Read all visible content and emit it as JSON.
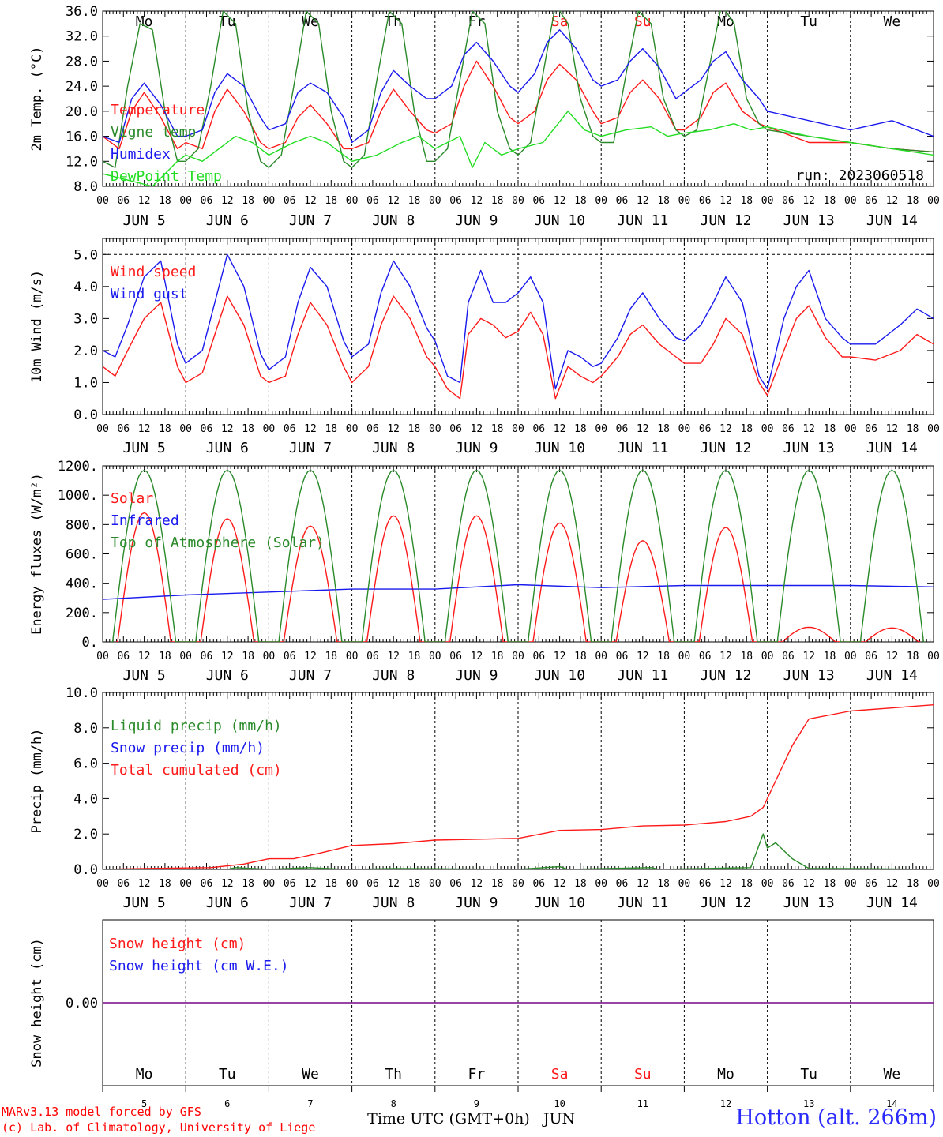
{
  "colors": {
    "red": "#ff1a1a",
    "darkgreen": "#2a8a2a",
    "green": "#22dd22",
    "blue": "#1a1aee",
    "purple": "#8a2a9a",
    "black": "#000000"
  },
  "hour_ticks": [
    "00",
    "06",
    "12",
    "18"
  ],
  "day_names": [
    "Mo",
    "Tu",
    "We",
    "Th",
    "Fr",
    "Sa",
    "Su",
    "Mo",
    "Tu",
    "We"
  ],
  "weekend_day_index": [
    5,
    6
  ],
  "date_labels": [
    "JUN  5",
    "JUN  6",
    "JUN  7",
    "JUN  8",
    "JUN  9",
    "JUN 10",
    "JUN 11",
    "JUN 12",
    "JUN 13",
    "JUN 14"
  ],
  "day_numbers": [
    "5",
    "6",
    "7",
    "8",
    "9",
    "10",
    "11",
    "12",
    "13",
    "14"
  ],
  "x_axis_title": "Time UTC (GMT+0h)",
  "x_axis_month": "JUN",
  "credits": [
    "MARv3.13 model forced by GFS",
    "(c) Lab. of Climatology, University of Liege"
  ],
  "station": "Hotton (alt. 266m)",
  "chart_data": [
    {
      "type": "line",
      "ylabel": "2m Temp. (°C)",
      "ylim": [
        8,
        36
      ],
      "yticks": [
        "8.0",
        "12.0",
        "16.0",
        "20.0",
        "24.0",
        "28.0",
        "32.0",
        "36.0"
      ],
      "run_label": "run: 2023060518",
      "grid": "vertical dashed at 00 UTC",
      "x_days": [
        0,
        10
      ],
      "series": [
        {
          "name": "Temperature",
          "color": "red",
          "x": [
            0,
            0.2,
            0.35,
            0.5,
            0.7,
            0.9,
            1.0,
            1.2,
            1.35,
            1.5,
            1.7,
            1.9,
            2.0,
            2.2,
            2.35,
            2.5,
            2.7,
            2.9,
            3.0,
            3.2,
            3.35,
            3.5,
            3.7,
            3.9,
            4.0,
            4.2,
            4.35,
            4.5,
            4.7,
            4.9,
            5.0,
            5.2,
            5.35,
            5.5,
            5.7,
            5.9,
            6.0,
            6.2,
            6.35,
            6.5,
            6.7,
            6.9,
            7.0,
            7.2,
            7.35,
            7.5,
            7.7,
            7.9,
            8.0,
            8.5,
            9.0,
            9.5,
            10.0
          ],
          "values": [
            16,
            14,
            20,
            23,
            19,
            14,
            15,
            14,
            20,
            23.5,
            20,
            15,
            14,
            15,
            19,
            21,
            18,
            14,
            14,
            15,
            20,
            23.5,
            20,
            17,
            16.5,
            18,
            24,
            28,
            24,
            19,
            18,
            20,
            25,
            27.5,
            25,
            20,
            18,
            19,
            23,
            25,
            22,
            17,
            17,
            19,
            23,
            24.5,
            20,
            18,
            17.5,
            15,
            15,
            14,
            13.5
          ]
        },
        {
          "name": "Vigne temp",
          "color": "darkgreen",
          "x": [
            0,
            0.15,
            0.3,
            0.45,
            0.6,
            0.75,
            0.9,
            1.0,
            1.15,
            1.3,
            1.45,
            1.6,
            1.75,
            1.9,
            2.0,
            2.15,
            2.3,
            2.45,
            2.6,
            2.75,
            2.9,
            3.0,
            3.15,
            3.3,
            3.45,
            3.6,
            3.75,
            3.9,
            4.0,
            4.15,
            4.3,
            4.45,
            4.6,
            4.75,
            4.9,
            5.0,
            5.15,
            5.3,
            5.45,
            5.6,
            5.75,
            5.9,
            6.0,
            6.15,
            6.3,
            6.45,
            6.6,
            6.75,
            6.9,
            7.0,
            7.15,
            7.3,
            7.45,
            7.6,
            7.75,
            7.9,
            8.0,
            8.5,
            9.0,
            9.5,
            10.0
          ],
          "values": [
            12,
            11,
            24,
            34,
            33,
            20,
            12,
            12,
            14,
            24,
            36,
            34,
            20,
            12,
            11,
            13,
            24,
            36,
            34,
            20,
            12,
            11,
            13,
            25,
            36,
            34,
            20,
            12,
            12,
            14,
            25,
            36,
            34,
            20,
            14,
            13,
            15,
            26,
            37,
            34,
            22,
            16,
            15,
            15,
            26,
            36,
            34,
            22,
            17,
            16,
            17,
            27,
            37,
            34,
            22,
            18,
            17,
            16,
            15,
            14,
            13.5
          ]
        },
        {
          "name": "Humidex",
          "color": "blue",
          "x": [
            0,
            0.2,
            0.35,
            0.5,
            0.7,
            0.9,
            1.0,
            1.2,
            1.35,
            1.5,
            1.7,
            1.9,
            2.0,
            2.2,
            2.35,
            2.5,
            2.7,
            2.9,
            3.0,
            3.2,
            3.35,
            3.5,
            3.7,
            3.9,
            4.0,
            4.2,
            4.35,
            4.5,
            4.7,
            4.9,
            5.0,
            5.2,
            5.35,
            5.5,
            5.7,
            5.9,
            6.0,
            6.2,
            6.35,
            6.5,
            6.7,
            6.9,
            7.0,
            7.2,
            7.35,
            7.5,
            7.7,
            7.9,
            8.0,
            8.5,
            9.0,
            9.5,
            10.0
          ],
          "values": [
            16,
            15,
            22,
            24.5,
            21,
            16,
            16,
            17,
            23,
            26,
            24,
            19,
            17,
            18,
            23,
            24.5,
            23,
            19,
            15,
            17,
            23,
            26.5,
            24,
            22,
            22,
            24,
            29,
            31,
            28,
            24,
            23,
            26,
            31,
            33,
            30,
            25,
            24,
            25,
            28,
            30,
            27,
            22,
            23,
            25,
            28,
            29.5,
            25,
            22,
            20,
            18.5,
            17,
            18.5,
            16
          ]
        },
        {
          "name": "DewPoint Temp",
          "color": "green",
          "x": [
            0,
            0.3,
            0.6,
            0.9,
            1.0,
            1.2,
            1.4,
            1.6,
            1.8,
            2.0,
            2.3,
            2.5,
            2.7,
            3.0,
            3.3,
            3.6,
            3.8,
            4.0,
            4.3,
            4.45,
            4.6,
            4.8,
            5.0,
            5.3,
            5.6,
            5.8,
            6.0,
            6.3,
            6.6,
            6.8,
            7.0,
            7.3,
            7.6,
            7.8,
            8.0,
            8.5,
            9.0,
            9.5,
            10.0
          ],
          "values": [
            10,
            9,
            8,
            12,
            13,
            12,
            14,
            16,
            15,
            13,
            15,
            16,
            15,
            12,
            13,
            15,
            16,
            14,
            16,
            11,
            15,
            13,
            14,
            15,
            20,
            17,
            16,
            17,
            17.5,
            16,
            16.5,
            17,
            18,
            17,
            17.5,
            16,
            15,
            14,
            13
          ]
        }
      ]
    },
    {
      "type": "line",
      "ylabel": "10m Wind (m/s)",
      "ylim": [
        0,
        5.5
      ],
      "yticks": [
        "0.0",
        "1.0",
        "2.0",
        "3.0",
        "4.0",
        "5.0"
      ],
      "ref_line": 5.0,
      "series": [
        {
          "name": "Wind speed",
          "color": "red",
          "x": [
            0,
            0.15,
            0.3,
            0.5,
            0.7,
            0.9,
            1.0,
            1.2,
            1.35,
            1.5,
            1.7,
            1.9,
            2.0,
            2.2,
            2.35,
            2.5,
            2.7,
            2.9,
            3.0,
            3.2,
            3.35,
            3.5,
            3.7,
            3.9,
            4.0,
            4.15,
            4.3,
            4.4,
            4.55,
            4.7,
            4.85,
            5.0,
            5.15,
            5.3,
            5.45,
            5.6,
            5.75,
            5.9,
            6.0,
            6.2,
            6.35,
            6.5,
            6.7,
            6.9,
            7.0,
            7.2,
            7.35,
            7.5,
            7.7,
            7.9,
            8.0,
            8.2,
            8.35,
            8.5,
            8.7,
            8.9,
            9.0,
            9.3,
            9.6,
            9.8,
            10.0
          ],
          "values": [
            1.5,
            1.2,
            2.0,
            3.0,
            3.5,
            1.5,
            1.0,
            1.3,
            2.5,
            3.7,
            2.8,
            1.2,
            1.0,
            1.2,
            2.5,
            3.5,
            2.8,
            1.5,
            1.0,
            1.5,
            2.8,
            3.7,
            3.0,
            1.8,
            1.5,
            0.8,
            0.5,
            2.5,
            3.0,
            2.8,
            2.4,
            2.6,
            3.2,
            2.5,
            0.5,
            1.5,
            1.2,
            1.0,
            1.2,
            1.8,
            2.5,
            2.8,
            2.2,
            1.8,
            1.6,
            1.6,
            2.2,
            3.0,
            2.5,
            1.0,
            0.6,
            2.0,
            3.0,
            3.4,
            2.4,
            1.8,
            1.8,
            1.7,
            2.0,
            2.5,
            2.2
          ]
        },
        {
          "name": "Wind gust",
          "color": "blue",
          "x": [
            0,
            0.15,
            0.3,
            0.5,
            0.7,
            0.9,
            1.0,
            1.2,
            1.35,
            1.5,
            1.7,
            1.9,
            2.0,
            2.2,
            2.35,
            2.5,
            2.7,
            2.9,
            3.0,
            3.2,
            3.35,
            3.5,
            3.7,
            3.9,
            4.0,
            4.15,
            4.3,
            4.4,
            4.55,
            4.7,
            4.85,
            5.0,
            5.15,
            5.3,
            5.45,
            5.6,
            5.75,
            5.9,
            6.0,
            6.2,
            6.35,
            6.5,
            6.7,
            6.9,
            7.0,
            7.2,
            7.35,
            7.5,
            7.7,
            7.9,
            8.0,
            8.2,
            8.35,
            8.5,
            8.7,
            8.9,
            9.0,
            9.3,
            9.6,
            9.8,
            10.0
          ],
          "values": [
            2.0,
            1.8,
            2.8,
            4.3,
            4.8,
            2.2,
            1.6,
            2.0,
            3.5,
            5.0,
            4.0,
            1.9,
            1.4,
            1.8,
            3.5,
            4.6,
            4.0,
            2.3,
            1.8,
            2.2,
            3.8,
            4.8,
            4.0,
            2.7,
            2.3,
            1.2,
            1.0,
            3.5,
            4.5,
            3.5,
            3.5,
            3.8,
            4.3,
            3.5,
            0.8,
            2.0,
            1.8,
            1.5,
            1.6,
            2.4,
            3.3,
            3.8,
            3.0,
            2.4,
            2.3,
            2.8,
            3.5,
            4.3,
            3.5,
            1.2,
            0.8,
            3.0,
            4.0,
            4.5,
            3.0,
            2.4,
            2.2,
            2.2,
            2.8,
            3.3,
            3.0
          ]
        }
      ]
    },
    {
      "type": "line",
      "ylabel": "Energy fluxes (W/m²)",
      "ylim": [
        0,
        1200
      ],
      "yticks": [
        "0.",
        "200.",
        "400.",
        "600.",
        "800.",
        "1000.",
        "1200."
      ],
      "series": [
        {
          "name": "Solar",
          "color": "red",
          "day_peaks": [
            880,
            840,
            790,
            860,
            860,
            810,
            690,
            780,
            100,
            95
          ]
        },
        {
          "name": "Infrared",
          "color": "blue",
          "x": [
            0,
            1,
            2,
            3,
            4,
            5,
            6,
            7,
            8,
            9,
            10
          ],
          "values": [
            290,
            320,
            340,
            360,
            360,
            390,
            370,
            385,
            385,
            385,
            375
          ]
        },
        {
          "name": "Top of Atmosphere (Solar)",
          "color": "darkgreen",
          "day_peaks": [
            1170,
            1170,
            1170,
            1170,
            1170,
            1170,
            1170,
            1170,
            1170,
            1170
          ]
        }
      ]
    },
    {
      "type": "line",
      "ylabel": "Precip (mm/h)",
      "ylim": [
        0,
        10
      ],
      "yticks": [
        "0.0",
        "2.0",
        "4.0",
        "6.0",
        "8.0",
        "10.0"
      ],
      "series": [
        {
          "name": "Liquid precip (mm/h)",
          "color": "darkgreen",
          "x": [
            0,
            1.5,
            1.6,
            2.0,
            2.5,
            2.9,
            3.0,
            3.5,
            5.0,
            5.5,
            5.6,
            6.6,
            6.7,
            7.8,
            7.95,
            8.0,
            8.1,
            8.3,
            8.5,
            9.0,
            10.0
          ],
          "values": [
            0,
            0,
            0.1,
            0,
            0.1,
            0,
            0,
            0.05,
            0,
            0.15,
            0,
            0.1,
            0,
            0.1,
            2.0,
            1.2,
            1.5,
            0.6,
            0.05,
            0.05,
            0
          ]
        },
        {
          "name": "Snow precip (mm/h)",
          "color": "blue",
          "x": [
            0,
            10
          ],
          "values": [
            0,
            0
          ]
        },
        {
          "name": "Total cumulated (cm)",
          "color": "red",
          "x": [
            0,
            0.5,
            1.3,
            1.7,
            2.0,
            2.3,
            2.6,
            3.0,
            3.5,
            4.0,
            4.5,
            5.0,
            5.5,
            6.0,
            6.5,
            7.0,
            7.5,
            7.8,
            7.95,
            8.1,
            8.3,
            8.5,
            9.0,
            10.0
          ],
          "values": [
            0,
            0.05,
            0.1,
            0.3,
            0.6,
            0.6,
            0.9,
            1.35,
            1.45,
            1.65,
            1.7,
            1.75,
            2.2,
            2.25,
            2.45,
            2.5,
            2.7,
            3.0,
            3.5,
            5.0,
            7.0,
            8.5,
            8.95,
            9.3
          ]
        }
      ]
    },
    {
      "type": "line",
      "ylabel": "Snow height (cm)",
      "ylim": [
        -1,
        1
      ],
      "yticks": [
        "0.00"
      ],
      "series": [
        {
          "name": "Snow height (cm)",
          "color": "red",
          "x": [
            0,
            10
          ],
          "values": [
            0,
            0
          ]
        },
        {
          "name": "Snow height (cm W.E.)",
          "color": "blue",
          "x": [
            0,
            10
          ],
          "values": [
            0,
            0
          ]
        }
      ]
    }
  ]
}
